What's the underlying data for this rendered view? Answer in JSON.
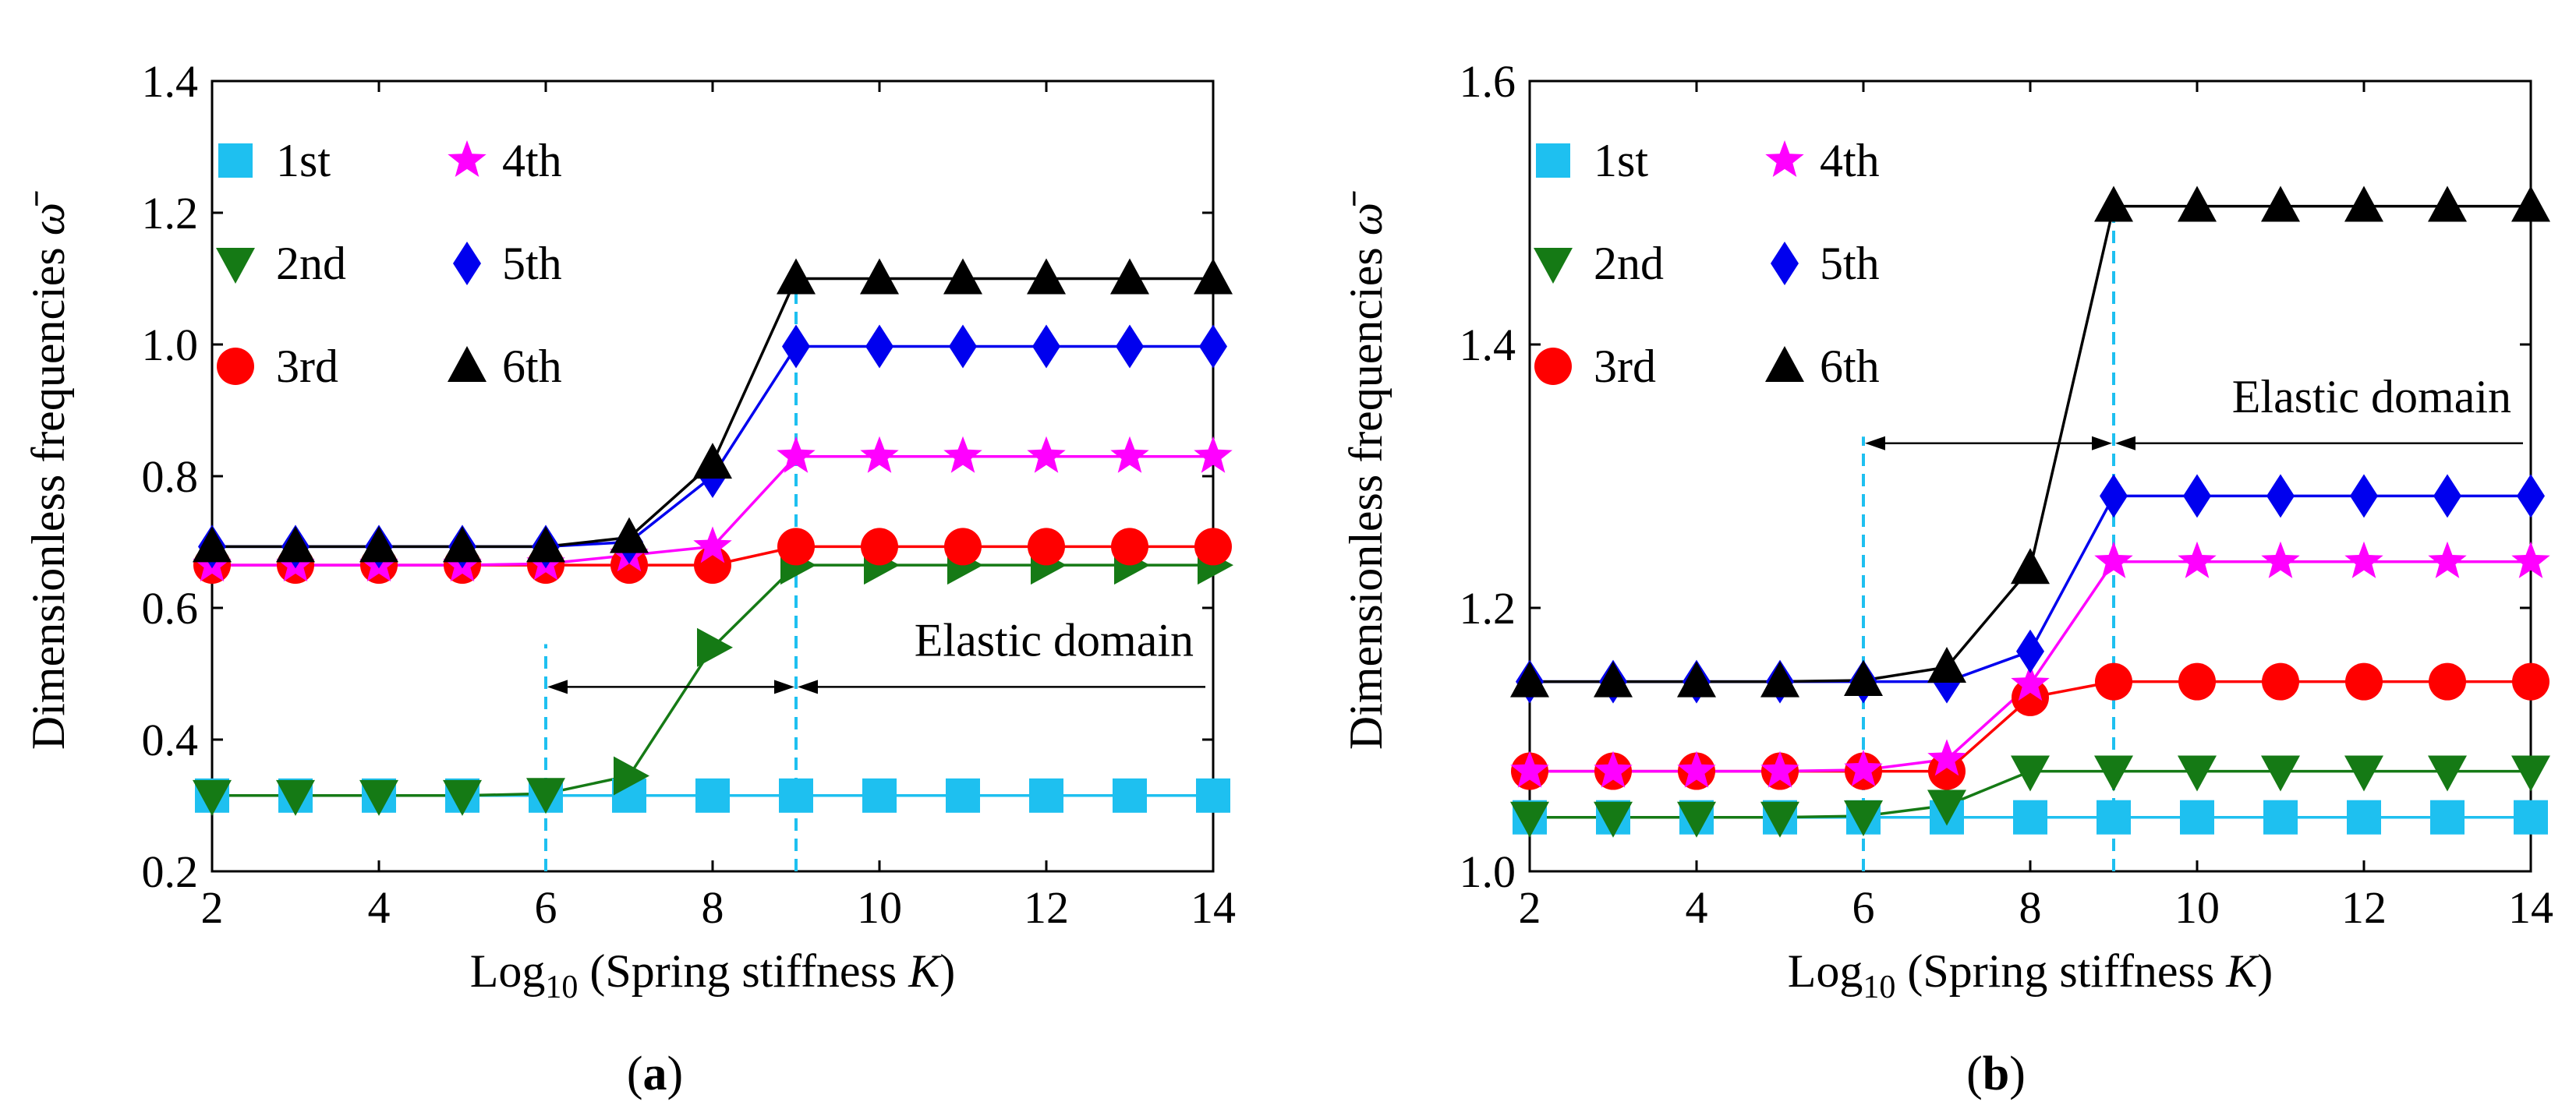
{
  "figure": {
    "panel_labels": [
      "(a)",
      "(b)"
    ]
  },
  "chart_data": [
    {
      "type": "line",
      "panel": "(a)",
      "xlabel": "Log10 (Spring stiffness K)",
      "ylabel": "Dimensionless frequencies ω̄",
      "xlim": [
        2,
        14
      ],
      "ylim": [
        0.2,
        1.4
      ],
      "xticks": [
        2,
        4,
        6,
        8,
        10,
        12,
        14
      ],
      "yticks": [
        0.2,
        0.4,
        0.6,
        0.8,
        1.0,
        1.2,
        1.4
      ],
      "ytick_labels": [
        "0.2",
        "0.4",
        "0.6",
        "0.8",
        "1.0",
        "1.2",
        "1.4"
      ],
      "x": [
        2,
        3,
        4,
        5,
        6,
        7,
        8,
        9,
        10,
        11,
        12,
        13,
        14
      ],
      "series": [
        {
          "name": "1st",
          "color": "#1ec0f0",
          "marker": "square",
          "values": [
            0.315,
            0.315,
            0.315,
            0.315,
            0.315,
            0.315,
            0.315,
            0.315,
            0.315,
            0.315,
            0.315,
            0.315,
            0.315
          ]
        },
        {
          "name": "2nd",
          "color": "#157a15",
          "marker": "triangle-down",
          "values": [
            0.315,
            0.315,
            0.315,
            0.315,
            0.318,
            0.345,
            0.54,
            0.665,
            0.665,
            0.665,
            0.665,
            0.665,
            0.665
          ]
        },
        {
          "name": "3rd",
          "color": "#ff0000",
          "marker": "circle",
          "values": [
            0.665,
            0.665,
            0.665,
            0.665,
            0.665,
            0.665,
            0.665,
            0.693,
            0.693,
            0.693,
            0.693,
            0.693,
            0.693
          ]
        },
        {
          "name": "4th",
          "color": "#ff00ff",
          "marker": "star",
          "values": [
            0.665,
            0.665,
            0.665,
            0.665,
            0.667,
            0.68,
            0.693,
            0.83,
            0.83,
            0.83,
            0.83,
            0.83,
            0.83
          ]
        },
        {
          "name": "5th",
          "color": "#0000ee",
          "marker": "diamond",
          "values": [
            0.693,
            0.693,
            0.693,
            0.693,
            0.693,
            0.7,
            0.8,
            0.997,
            0.997,
            0.997,
            0.997,
            0.997,
            0.997
          ]
        },
        {
          "name": "6th",
          "color": "#000000",
          "marker": "triangle-up",
          "values": [
            0.693,
            0.693,
            0.693,
            0.693,
            0.693,
            0.707,
            0.82,
            1.1,
            1.1,
            1.1,
            1.1,
            1.1,
            1.1
          ]
        }
      ],
      "vlines": [
        6,
        9
      ],
      "vline_color": "#1ec0f0",
      "annotation": {
        "text": "Elastic domain",
        "arrow_from": 6,
        "arrow_to": 9,
        "arrow_y": 0.48,
        "line_to": 14
      }
    },
    {
      "type": "line",
      "panel": "(b)",
      "xlabel": "Log10 (Spring stiffness K)",
      "ylabel": "Dimensionless frequencies ω̄",
      "xlim": [
        2,
        14
      ],
      "ylim": [
        1.0,
        1.6
      ],
      "xticks": [
        2,
        4,
        6,
        8,
        10,
        12,
        14
      ],
      "yticks": [
        1.0,
        1.2,
        1.4,
        1.6
      ],
      "ytick_labels": [
        "1.0",
        "1.2",
        "1.4",
        "1.6"
      ],
      "x": [
        2,
        3,
        4,
        5,
        6,
        7,
        8,
        9,
        10,
        11,
        12,
        13,
        14
      ],
      "series": [
        {
          "name": "1st",
          "color": "#1ec0f0",
          "marker": "square",
          "values": [
            1.041,
            1.041,
            1.041,
            1.041,
            1.041,
            1.041,
            1.041,
            1.041,
            1.041,
            1.041,
            1.041,
            1.041,
            1.041
          ]
        },
        {
          "name": "2nd",
          "color": "#157a15",
          "marker": "triangle-down",
          "values": [
            1.041,
            1.041,
            1.041,
            1.041,
            1.042,
            1.05,
            1.076,
            1.076,
            1.076,
            1.076,
            1.076,
            1.076,
            1.076
          ]
        },
        {
          "name": "3rd",
          "color": "#ff0000",
          "marker": "circle",
          "values": [
            1.076,
            1.076,
            1.076,
            1.076,
            1.076,
            1.076,
            1.132,
            1.144,
            1.144,
            1.144,
            1.144,
            1.144,
            1.144
          ]
        },
        {
          "name": "4th",
          "color": "#ff00ff",
          "marker": "star",
          "values": [
            1.076,
            1.076,
            1.076,
            1.076,
            1.077,
            1.085,
            1.142,
            1.235,
            1.235,
            1.235,
            1.235,
            1.235,
            1.235
          ]
        },
        {
          "name": "5th",
          "color": "#0000ee",
          "marker": "diamond",
          "values": [
            1.144,
            1.144,
            1.144,
            1.144,
            1.144,
            1.144,
            1.167,
            1.285,
            1.285,
            1.285,
            1.285,
            1.285,
            1.285
          ]
        },
        {
          "name": "6th",
          "color": "#000000",
          "marker": "triangle-up",
          "values": [
            1.144,
            1.144,
            1.144,
            1.144,
            1.145,
            1.155,
            1.23,
            1.505,
            1.505,
            1.505,
            1.505,
            1.505,
            1.505
          ]
        }
      ],
      "vlines": [
        6,
        9
      ],
      "vline_color": "#1ec0f0",
      "vline_tops": [
        1.33,
        1.505
      ],
      "annotation": {
        "text": "Elastic domain",
        "arrow_from": 6,
        "arrow_to": 9,
        "arrow_y": 1.325,
        "line_to": 14
      }
    }
  ]
}
